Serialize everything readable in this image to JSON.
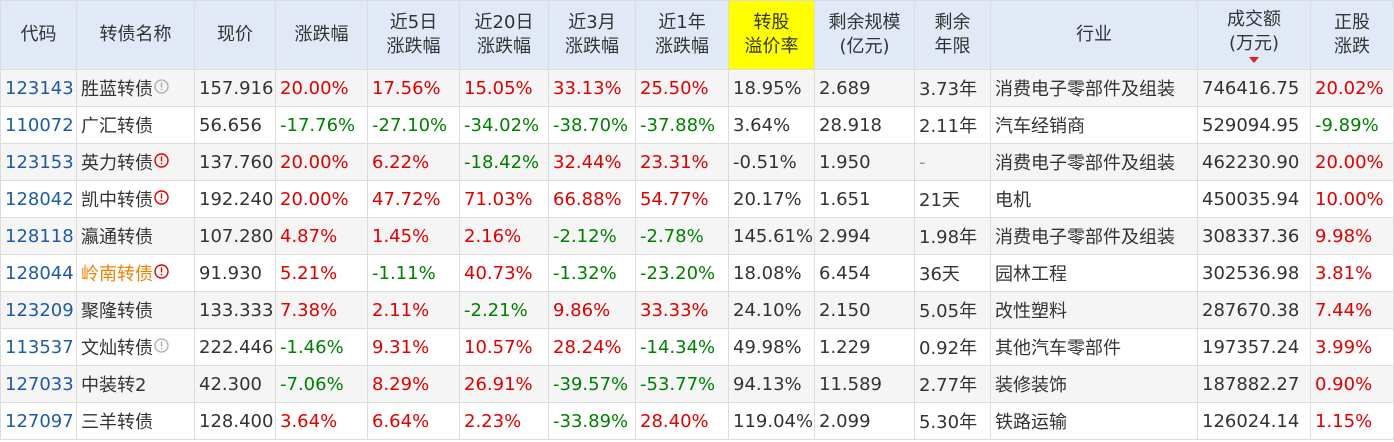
{
  "columns": [
    {
      "key": "code",
      "label": "代码"
    },
    {
      "key": "name",
      "label": "转债名称"
    },
    {
      "key": "price",
      "label": "现价"
    },
    {
      "key": "chg",
      "label": "涨跌幅"
    },
    {
      "key": "chg5d",
      "label": "近5日\n涨跌幅"
    },
    {
      "key": "chg20d",
      "label": "近20日\n涨跌幅"
    },
    {
      "key": "chg3m",
      "label": "近3月\n涨跌幅"
    },
    {
      "key": "chg1y",
      "label": "近1年\n涨跌幅"
    },
    {
      "key": "premium",
      "label": "转股\n溢价率",
      "highlight": true
    },
    {
      "key": "scale",
      "label": "剩余规模\n(亿元)"
    },
    {
      "key": "years",
      "label": "剩余\n年限"
    },
    {
      "key": "industry",
      "label": "行业"
    },
    {
      "key": "turnover",
      "label": "成交额\n(万元)",
      "sorted": "desc"
    },
    {
      "key": "stock_chg",
      "label": "正股\n涨跌"
    }
  ],
  "rows": [
    {
      "code": "123143",
      "name": "胜蓝转债",
      "flag": "info",
      "price": "157.916",
      "chg": "20.00%",
      "chg5d": "17.56%",
      "chg20d": "15.05%",
      "chg3m": "33.13%",
      "chg1y": "25.50%",
      "premium": "18.95%",
      "scale": "2.689",
      "years": "3.73年",
      "industry": "消费电子零部件及组装",
      "turnover": "746416.75",
      "stock_chg": "20.02%"
    },
    {
      "code": "110072",
      "name": "广汇转债",
      "flag": "",
      "price": "56.656",
      "chg": "-17.76%",
      "chg5d": "-27.10%",
      "chg20d": "-34.02%",
      "chg3m": "-38.70%",
      "chg1y": "-37.88%",
      "premium": "3.64%",
      "scale": "28.918",
      "years": "2.11年",
      "industry": "汽车经销商",
      "turnover": "529094.95",
      "stock_chg": "-9.89%"
    },
    {
      "code": "123153",
      "name": "英力转债",
      "flag": "warn",
      "price": "137.760",
      "chg": "20.00%",
      "chg5d": "6.22%",
      "chg20d": "-18.42%",
      "chg3m": "32.44%",
      "chg1y": "23.31%",
      "premium": "-0.51%",
      "scale": "1.950",
      "years": "-",
      "industry": "消费电子零部件及组装",
      "turnover": "462230.90",
      "stock_chg": "20.00%"
    },
    {
      "code": "128042",
      "name": "凯中转债",
      "flag": "warn",
      "price": "192.240",
      "chg": "20.00%",
      "chg5d": "47.72%",
      "chg20d": "71.03%",
      "chg3m": "66.88%",
      "chg1y": "54.77%",
      "premium": "20.17%",
      "scale": "1.651",
      "years": "21天",
      "industry": "电机",
      "turnover": "450035.94",
      "stock_chg": "10.00%"
    },
    {
      "code": "128118",
      "name": "瀛通转债",
      "flag": "",
      "price": "107.280",
      "chg": "4.87%",
      "chg5d": "1.45%",
      "chg20d": "2.16%",
      "chg3m": "-2.12%",
      "chg1y": "-2.78%",
      "premium": "145.61%",
      "scale": "2.994",
      "years": "1.98年",
      "industry": "消费电子零部件及组装",
      "turnover": "308337.36",
      "stock_chg": "9.98%"
    },
    {
      "code": "128044",
      "name": "岭南转债",
      "flag": "warn",
      "name_color": "orange",
      "price": "91.930",
      "chg": "5.21%",
      "chg5d": "-1.11%",
      "chg20d": "40.73%",
      "chg3m": "-1.32%",
      "chg1y": "-23.20%",
      "premium": "18.08%",
      "scale": "6.454",
      "years": "36天",
      "industry": "园林工程",
      "turnover": "302536.98",
      "stock_chg": "3.81%"
    },
    {
      "code": "123209",
      "name": "聚隆转债",
      "flag": "",
      "price": "133.333",
      "chg": "7.38%",
      "chg5d": "2.11%",
      "chg20d": "-2.21%",
      "chg3m": "9.86%",
      "chg1y": "33.33%",
      "premium": "24.10%",
      "scale": "2.150",
      "years": "5.05年",
      "industry": "改性塑料",
      "turnover": "287670.38",
      "stock_chg": "7.44%"
    },
    {
      "code": "113537",
      "name": "文灿转债",
      "flag": "info",
      "price": "222.446",
      "chg": "-1.46%",
      "chg5d": "9.31%",
      "chg20d": "10.57%",
      "chg3m": "28.24%",
      "chg1y": "-14.34%",
      "premium": "49.98%",
      "scale": "1.229",
      "years": "0.92年",
      "industry": "其他汽车零部件",
      "turnover": "197357.24",
      "stock_chg": "3.99%"
    },
    {
      "code": "127033",
      "name": "中装转2",
      "flag": "",
      "price": "42.300",
      "chg": "-7.06%",
      "chg5d": "8.29%",
      "chg20d": "26.91%",
      "chg3m": "-39.57%",
      "chg1y": "-53.77%",
      "premium": "94.13%",
      "scale": "11.589",
      "years": "2.77年",
      "industry": "装修装饰",
      "turnover": "187882.27",
      "stock_chg": "0.90%"
    },
    {
      "code": "127097",
      "name": "三羊转债",
      "flag": "",
      "price": "128.400",
      "chg": "3.64%",
      "chg5d": "6.64%",
      "chg20d": "2.23%",
      "chg3m": "-33.89%",
      "chg1y": "28.40%",
      "premium": "119.04%",
      "scale": "2.099",
      "years": "5.30年",
      "industry": "铁路运输",
      "turnover": "126024.14",
      "stock_chg": "1.15%"
    }
  ],
  "colors": {
    "up": "#e00000",
    "down": "#008000",
    "link": "#1f5aa6",
    "header_bg": "#e1e9f7",
    "highlight": "#ffff00",
    "orange": "#f08000"
  },
  "icons": {
    "info": "info-circle-icon",
    "warn": "warning-circle-icon",
    "sort": "sort-desc-icon"
  }
}
